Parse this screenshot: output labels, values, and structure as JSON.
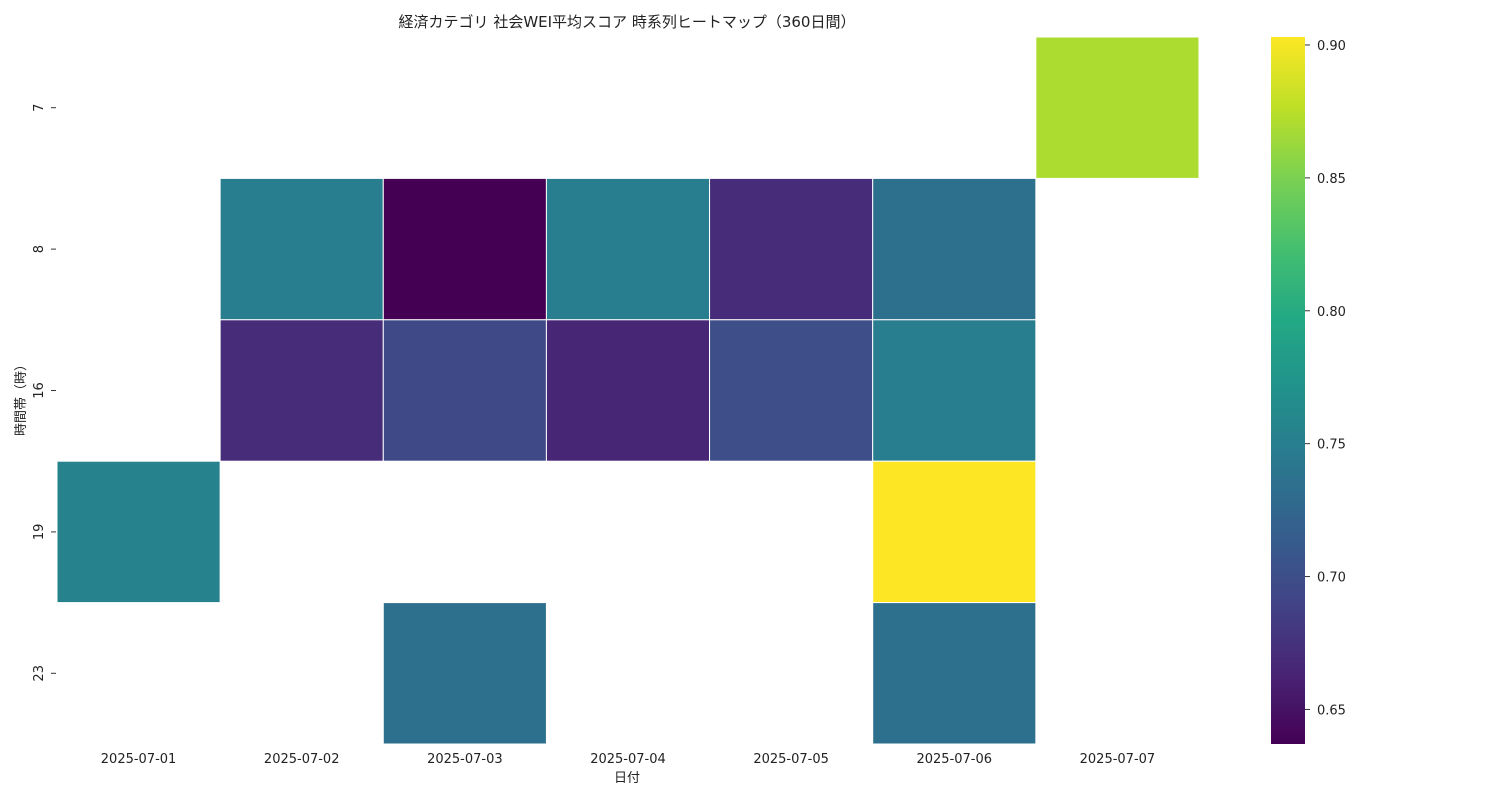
{
  "chart_data": {
    "type": "heatmap",
    "title": "経済カテゴリ 社会WEI平均スコア 時系列ヒートマップ（360日間）",
    "xlabel": "日付",
    "ylabel": "時間帯（時）",
    "x_categories": [
      "2025-07-01",
      "2025-07-02",
      "2025-07-03",
      "2025-07-04",
      "2025-07-05",
      "2025-07-06",
      "2025-07-07"
    ],
    "y_categories": [
      "7",
      "8",
      "16",
      "19",
      "23"
    ],
    "values": [
      [
        null,
        null,
        null,
        null,
        null,
        null,
        0.87
      ],
      [
        null,
        0.75,
        0.637,
        0.75,
        0.67,
        0.735,
        null
      ],
      [
        null,
        0.67,
        0.695,
        0.665,
        0.7,
        0.75,
        null
      ],
      [
        0.755,
        null,
        null,
        null,
        null,
        0.903,
        null
      ],
      [
        null,
        null,
        0.735,
        null,
        null,
        0.735,
        null
      ]
    ],
    "colormap": "viridis",
    "colorbar": {
      "min": 0.637,
      "max": 0.903,
      "ticks": [
        0.65,
        0.7,
        0.75,
        0.8,
        0.85,
        0.9
      ],
      "tick_labels": [
        "0.65",
        "0.70",
        "0.75",
        "0.80",
        "0.85",
        "0.90"
      ]
    },
    "grid": false,
    "cell_border_color": "#ffffff"
  }
}
